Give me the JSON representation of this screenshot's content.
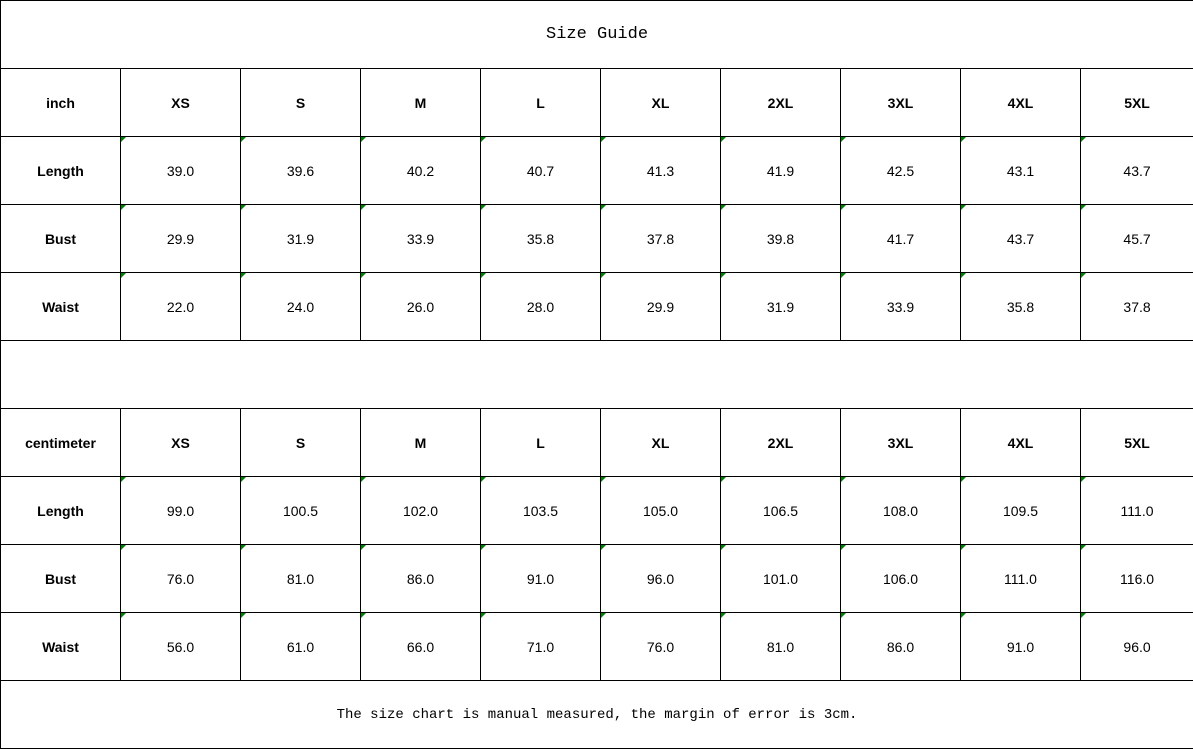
{
  "title": "Size Guide",
  "sizes": [
    "XS",
    "S",
    "M",
    "L",
    "XL",
    "2XL",
    "3XL",
    "4XL",
    "5XL"
  ],
  "tables": [
    {
      "unit": "inch",
      "rows": [
        {
          "label": "Length",
          "values": [
            "39.0",
            "39.6",
            "40.2",
            "40.7",
            "41.3",
            "41.9",
            "42.5",
            "43.1",
            "43.7"
          ]
        },
        {
          "label": "Bust",
          "values": [
            "29.9",
            "31.9",
            "33.9",
            "35.8",
            "37.8",
            "39.8",
            "41.7",
            "43.7",
            "45.7"
          ]
        },
        {
          "label": "Waist",
          "values": [
            "22.0",
            "24.0",
            "26.0",
            "28.0",
            "29.9",
            "31.9",
            "33.9",
            "35.8",
            "37.8"
          ]
        }
      ]
    },
    {
      "unit": "centimeter",
      "rows": [
        {
          "label": "Length",
          "values": [
            "99.0",
            "100.5",
            "102.0",
            "103.5",
            "105.0",
            "106.5",
            "108.0",
            "109.5",
            "111.0"
          ]
        },
        {
          "label": "Bust",
          "values": [
            "76.0",
            "81.0",
            "86.0",
            "91.0",
            "96.0",
            "101.0",
            "106.0",
            "111.0",
            "116.0"
          ]
        },
        {
          "label": "Waist",
          "values": [
            "56.0",
            "61.0",
            "66.0",
            "71.0",
            "76.0",
            "81.0",
            "86.0",
            "91.0",
            "96.0"
          ]
        }
      ]
    }
  ],
  "note": "The size chart is manual measured, the margin of error is 3cm.",
  "colors": {
    "error_indicator": "#008000",
    "border": "#000000"
  }
}
